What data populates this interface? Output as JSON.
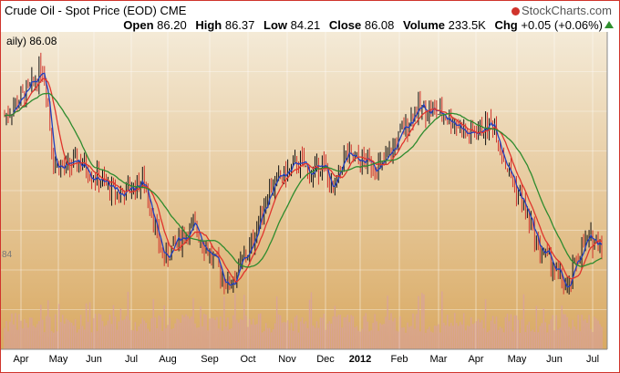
{
  "header": {
    "title": "Crude Oil - Spot Price (EOD)",
    "exchange": "CME",
    "brand": "StockCharts.com",
    "brand_icon": "stockcharts-logo-icon",
    "open_label": "Open",
    "open": "86.20",
    "high_label": "High",
    "high": "86.37",
    "low_label": "Low",
    "low": "84.21",
    "close_label": "Close",
    "close": "86.08",
    "volume_label": "Volume",
    "volume": "233.5K",
    "chg_label": "Chg",
    "chg": "+0.05 (+0.06%)",
    "chg_icon": "up-triangle-icon"
  },
  "legend_text": "aily) 86.08",
  "colors": {
    "bg_top": "#f4ead7",
    "bg_bottom": "#d9a962",
    "frame": "#d0342c",
    "candle": "#111111",
    "down": "#d0342c",
    "ma_fast": "#1f3fbf",
    "ma_mid": "#e0342c",
    "ma_slow": "#2e8b2e",
    "volume": "#d8a0a0"
  },
  "chart_data": {
    "type": "line",
    "x_ticks": [
      "Apr",
      "May",
      "Jun",
      "Jul",
      "Aug",
      "Sep",
      "Oct",
      "Nov",
      "Dec",
      "2012",
      "Feb",
      "Mar",
      "Apr",
      "May",
      "Jun",
      "Jul"
    ],
    "y_ticks": [
      "84"
    ],
    "ylim": [
      75,
      115
    ],
    "grid": true,
    "price_points": [
      {
        "t": 0,
        "v": 105
      },
      {
        "t": 0.5,
        "v": 108
      },
      {
        "t": 0.8,
        "v": 110
      },
      {
        "t": 1.0,
        "v": 113
      },
      {
        "t": 1.15,
        "v": 108
      },
      {
        "t": 1.3,
        "v": 98
      },
      {
        "t": 1.6,
        "v": 97
      },
      {
        "t": 2.0,
        "v": 98
      },
      {
        "t": 2.4,
        "v": 96
      },
      {
        "t": 2.8,
        "v": 94
      },
      {
        "t": 3.1,
        "v": 93
      },
      {
        "t": 3.4,
        "v": 94
      },
      {
        "t": 3.7,
        "v": 95
      },
      {
        "t": 3.9,
        "v": 92
      },
      {
        "t": 4.1,
        "v": 86
      },
      {
        "t": 4.3,
        "v": 83
      },
      {
        "t": 4.5,
        "v": 85
      },
      {
        "t": 4.8,
        "v": 87
      },
      {
        "t": 5.1,
        "v": 88
      },
      {
        "t": 5.4,
        "v": 85
      },
      {
        "t": 5.7,
        "v": 82
      },
      {
        "t": 6.0,
        "v": 79
      },
      {
        "t": 6.3,
        "v": 82
      },
      {
        "t": 6.6,
        "v": 85
      },
      {
        "t": 6.8,
        "v": 89
      },
      {
        "t": 7.1,
        "v": 94
      },
      {
        "t": 7.5,
        "v": 96
      },
      {
        "t": 7.9,
        "v": 98
      },
      {
        "t": 8.2,
        "v": 96
      },
      {
        "t": 8.5,
        "v": 98
      },
      {
        "t": 8.8,
        "v": 93
      },
      {
        "t": 9.1,
        "v": 99
      },
      {
        "t": 9.4,
        "v": 98
      },
      {
        "t": 9.8,
        "v": 98
      },
      {
        "t": 10.1,
        "v": 97
      },
      {
        "t": 10.4,
        "v": 100
      },
      {
        "t": 10.7,
        "v": 103
      },
      {
        "t": 11.0,
        "v": 106
      },
      {
        "t": 11.4,
        "v": 106
      },
      {
        "t": 11.8,
        "v": 105
      },
      {
        "t": 12.1,
        "v": 104
      },
      {
        "t": 12.4,
        "v": 102
      },
      {
        "t": 12.8,
        "v": 103
      },
      {
        "t": 13.1,
        "v": 104
      },
      {
        "t": 13.4,
        "v": 98
      },
      {
        "t": 13.7,
        "v": 94
      },
      {
        "t": 14.0,
        "v": 90
      },
      {
        "t": 14.3,
        "v": 85
      },
      {
        "t": 14.6,
        "v": 83
      },
      {
        "t": 14.9,
        "v": 80
      },
      {
        "t": 15.1,
        "v": 78
      },
      {
        "t": 15.3,
        "v": 83
      },
      {
        "t": 15.6,
        "v": 86
      },
      {
        "t": 16.0,
        "v": 86
      }
    ],
    "last_value": 86.08
  }
}
